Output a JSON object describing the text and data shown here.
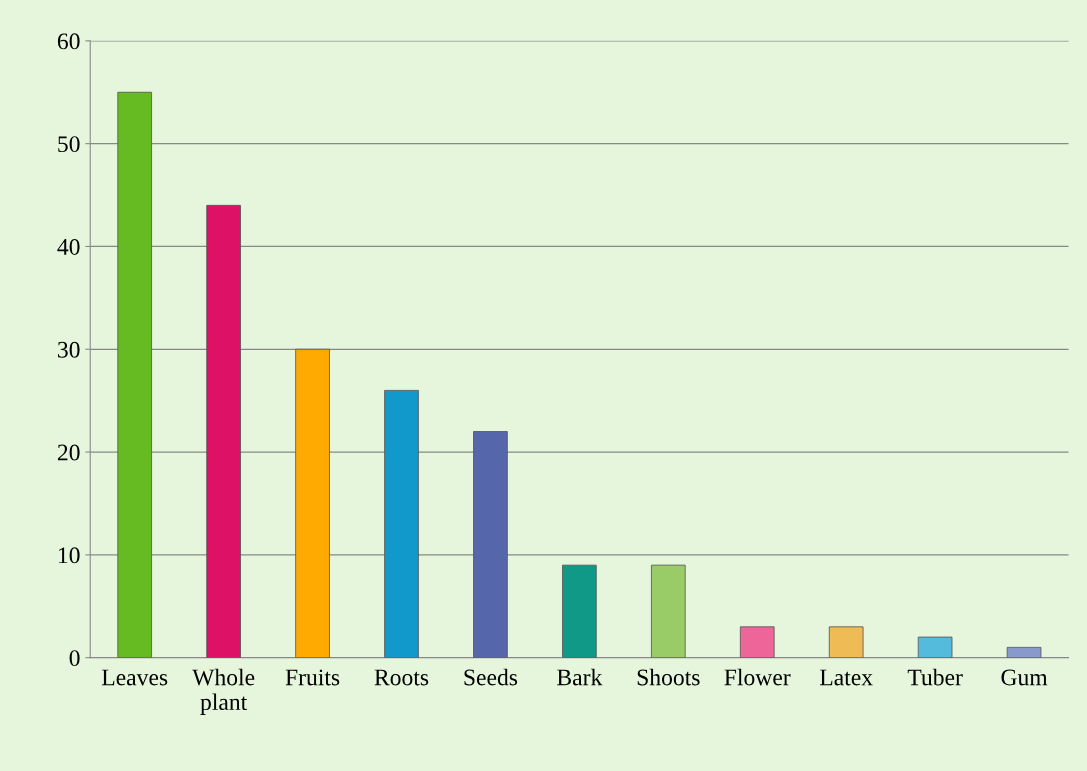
{
  "chart_data": {
    "type": "bar",
    "categories": [
      "Leaves",
      "Whole\nplant",
      "Fruits",
      "Roots",
      "Seeds",
      "Bark",
      "Shoots",
      "Flower",
      "Latex",
      "Tuber",
      "Gum"
    ],
    "values": [
      55,
      44,
      30,
      26,
      22,
      9,
      9,
      3,
      3,
      2,
      1
    ],
    "colors": [
      "#66bb22",
      "#dd1166",
      "#ffaa00",
      "#1199cc",
      "#5566aa",
      "#119988",
      "#99cc66",
      "#ee6699",
      "#eebb55",
      "#55bbdd",
      "#8899cc"
    ],
    "ylim": [
      0,
      60
    ],
    "yticks": [
      0,
      10,
      20,
      30,
      40,
      50,
      60
    ],
    "grid": "y"
  }
}
